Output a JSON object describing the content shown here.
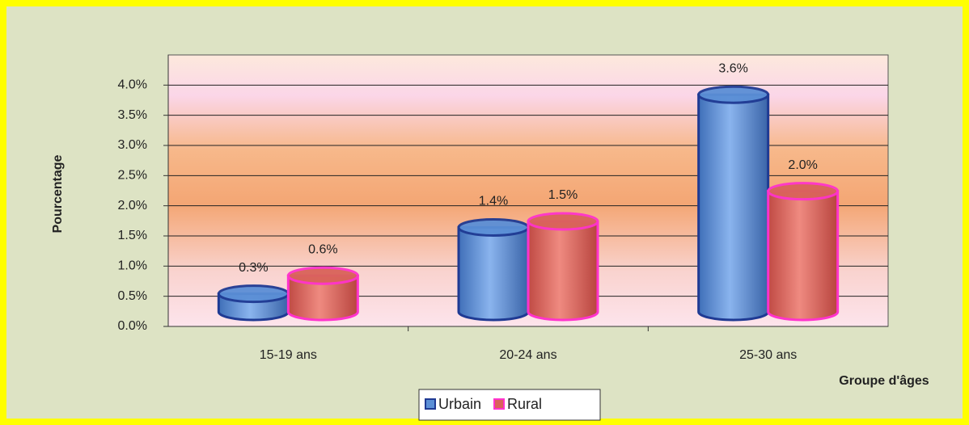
{
  "chart_data": {
    "type": "bar",
    "categories": [
      "15-19 ans",
      "20-24 ans",
      "25-30 ans"
    ],
    "series": [
      {
        "name": "Urbain",
        "color": "#5b8fd6",
        "values": [
          0.3,
          1.4,
          3.6
        ],
        "value_labels": [
          "0.3%",
          "1.4%",
          "3.6%"
        ]
      },
      {
        "name": "Rural",
        "color": "#d9635a",
        "values": [
          0.6,
          1.5,
          2.0
        ],
        "value_labels": [
          "0.6%",
          "1.5%",
          "2.0%"
        ]
      }
    ],
    "y_label": "Pourcentage",
    "x_label": "Groupe d'âges",
    "ylim": [
      0,
      4.5
    ],
    "yticks": [
      {
        "value": 0,
        "label": "0.0%"
      },
      {
        "value": 0.5,
        "label": "0.5%"
      },
      {
        "value": 1,
        "label": "1.0%"
      },
      {
        "value": 1.5,
        "label": "1.5%"
      },
      {
        "value": 2,
        "label": "2.0%"
      },
      {
        "value": 2.5,
        "label": "2.5%"
      },
      {
        "value": 3,
        "label": "3.0%"
      },
      {
        "value": 3.5,
        "label": "3.5%"
      },
      {
        "value": 4,
        "label": "4.0%"
      }
    ],
    "grid": true,
    "legend": "bottom"
  }
}
